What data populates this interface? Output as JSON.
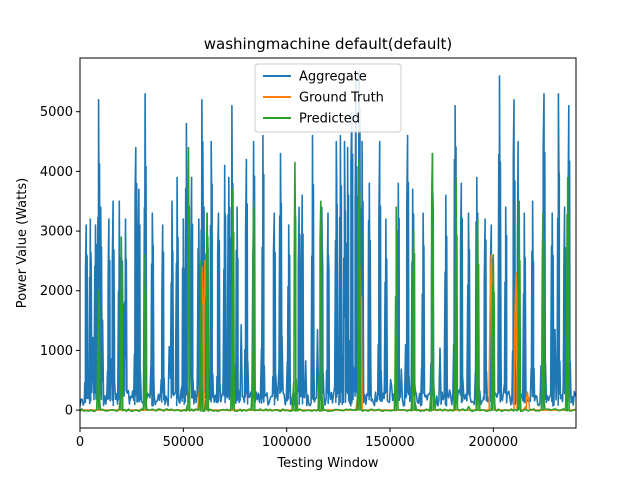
{
  "chart_data": {
    "type": "line",
    "title": "washingmachine default(default)",
    "xlabel": "Testing Window",
    "ylabel": "Power Value (Watts)",
    "xlim": [
      0,
      240000
    ],
    "ylim": [
      -300,
      5900
    ],
    "xticks": [
      0,
      50000,
      100000,
      150000,
      200000
    ],
    "yticks": [
      0,
      1000,
      2000,
      3000,
      4000,
      5000
    ],
    "grid": false,
    "legend_position": "top-center",
    "baseline_level": {
      "Aggregate": 200,
      "Ground Truth": 0,
      "Predicted": 0
    },
    "series": [
      {
        "name": "Aggregate",
        "color": "#1f77b4",
        "x": [
          3000,
          5000,
          7500,
          9000,
          10000,
          14000,
          16000,
          19000,
          20500,
          22000,
          27000,
          28500,
          31500,
          35000,
          40000,
          44500,
          47000,
          50000,
          51500,
          54000,
          57500,
          59000,
          60000,
          61500,
          63500,
          67000,
          70000,
          72000,
          73500,
          76000,
          80500,
          84000,
          88500,
          94000,
          97000,
          101000,
          106000,
          107500,
          112500,
          117000,
          120000,
          124000,
          126000,
          128000,
          129500,
          131500,
          133500,
          135000,
          136500,
          140000,
          145000,
          148000,
          154000,
          158500,
          161000,
          166000,
          170500,
          177000,
          181500,
          184500,
          188000,
          192000,
          196000,
          199000,
          203000,
          206000,
          210000,
          212000,
          215000,
          219000,
          224500,
          228500,
          231500,
          234500,
          236500
        ],
        "y": [
          3100,
          3200,
          3100,
          5200,
          3400,
          3200,
          3500,
          3500,
          2500,
          3200,
          4400,
          3700,
          5300,
          3300,
          3100,
          3500,
          3900,
          3200,
          4800,
          3900,
          3200,
          5200,
          3400,
          3300,
          4500,
          3300,
          4100,
          3900,
          5100,
          3400,
          4200,
          4500,
          4600,
          3300,
          4300,
          3100,
          3400,
          3600,
          4600,
          3400,
          3300,
          4500,
          4600,
          4500,
          4400,
          5000,
          5500,
          5700,
          4500,
          3800,
          4500,
          3200,
          3800,
          4600,
          3700,
          3300,
          4300,
          3600,
          5100,
          3800,
          3300,
          3900,
          3200,
          3100,
          5600,
          3400,
          5200,
          4500,
          3300,
          3500,
          5300,
          3300,
          5300,
          3400,
          5100
        ]
      },
      {
        "name": "Ground Truth",
        "color": "#ff7f0e",
        "x": [
          59000,
          60500,
          135500,
          199000,
          211000,
          216500
        ],
        "y": [
          2400,
          2500,
          2400,
          2600,
          2300,
          300
        ]
      },
      {
        "name": "Predicted",
        "color": "#2ca02c",
        "x": [
          9000,
          20000,
          31500,
          52500,
          58500,
          61500,
          74000,
          84000,
          104000,
          116500,
          135000,
          153000,
          161500,
          170500,
          182000,
          192500,
          200000,
          212500,
          224000,
          236000
        ],
        "y": [
          2000,
          2900,
          2600,
          4400,
          2500,
          3300,
          3700,
          3500,
          4150,
          3500,
          4200,
          3400,
          3000,
          4300,
          3900,
          3200,
          2600,
          3500,
          3300,
          3900
        ]
      }
    ]
  }
}
